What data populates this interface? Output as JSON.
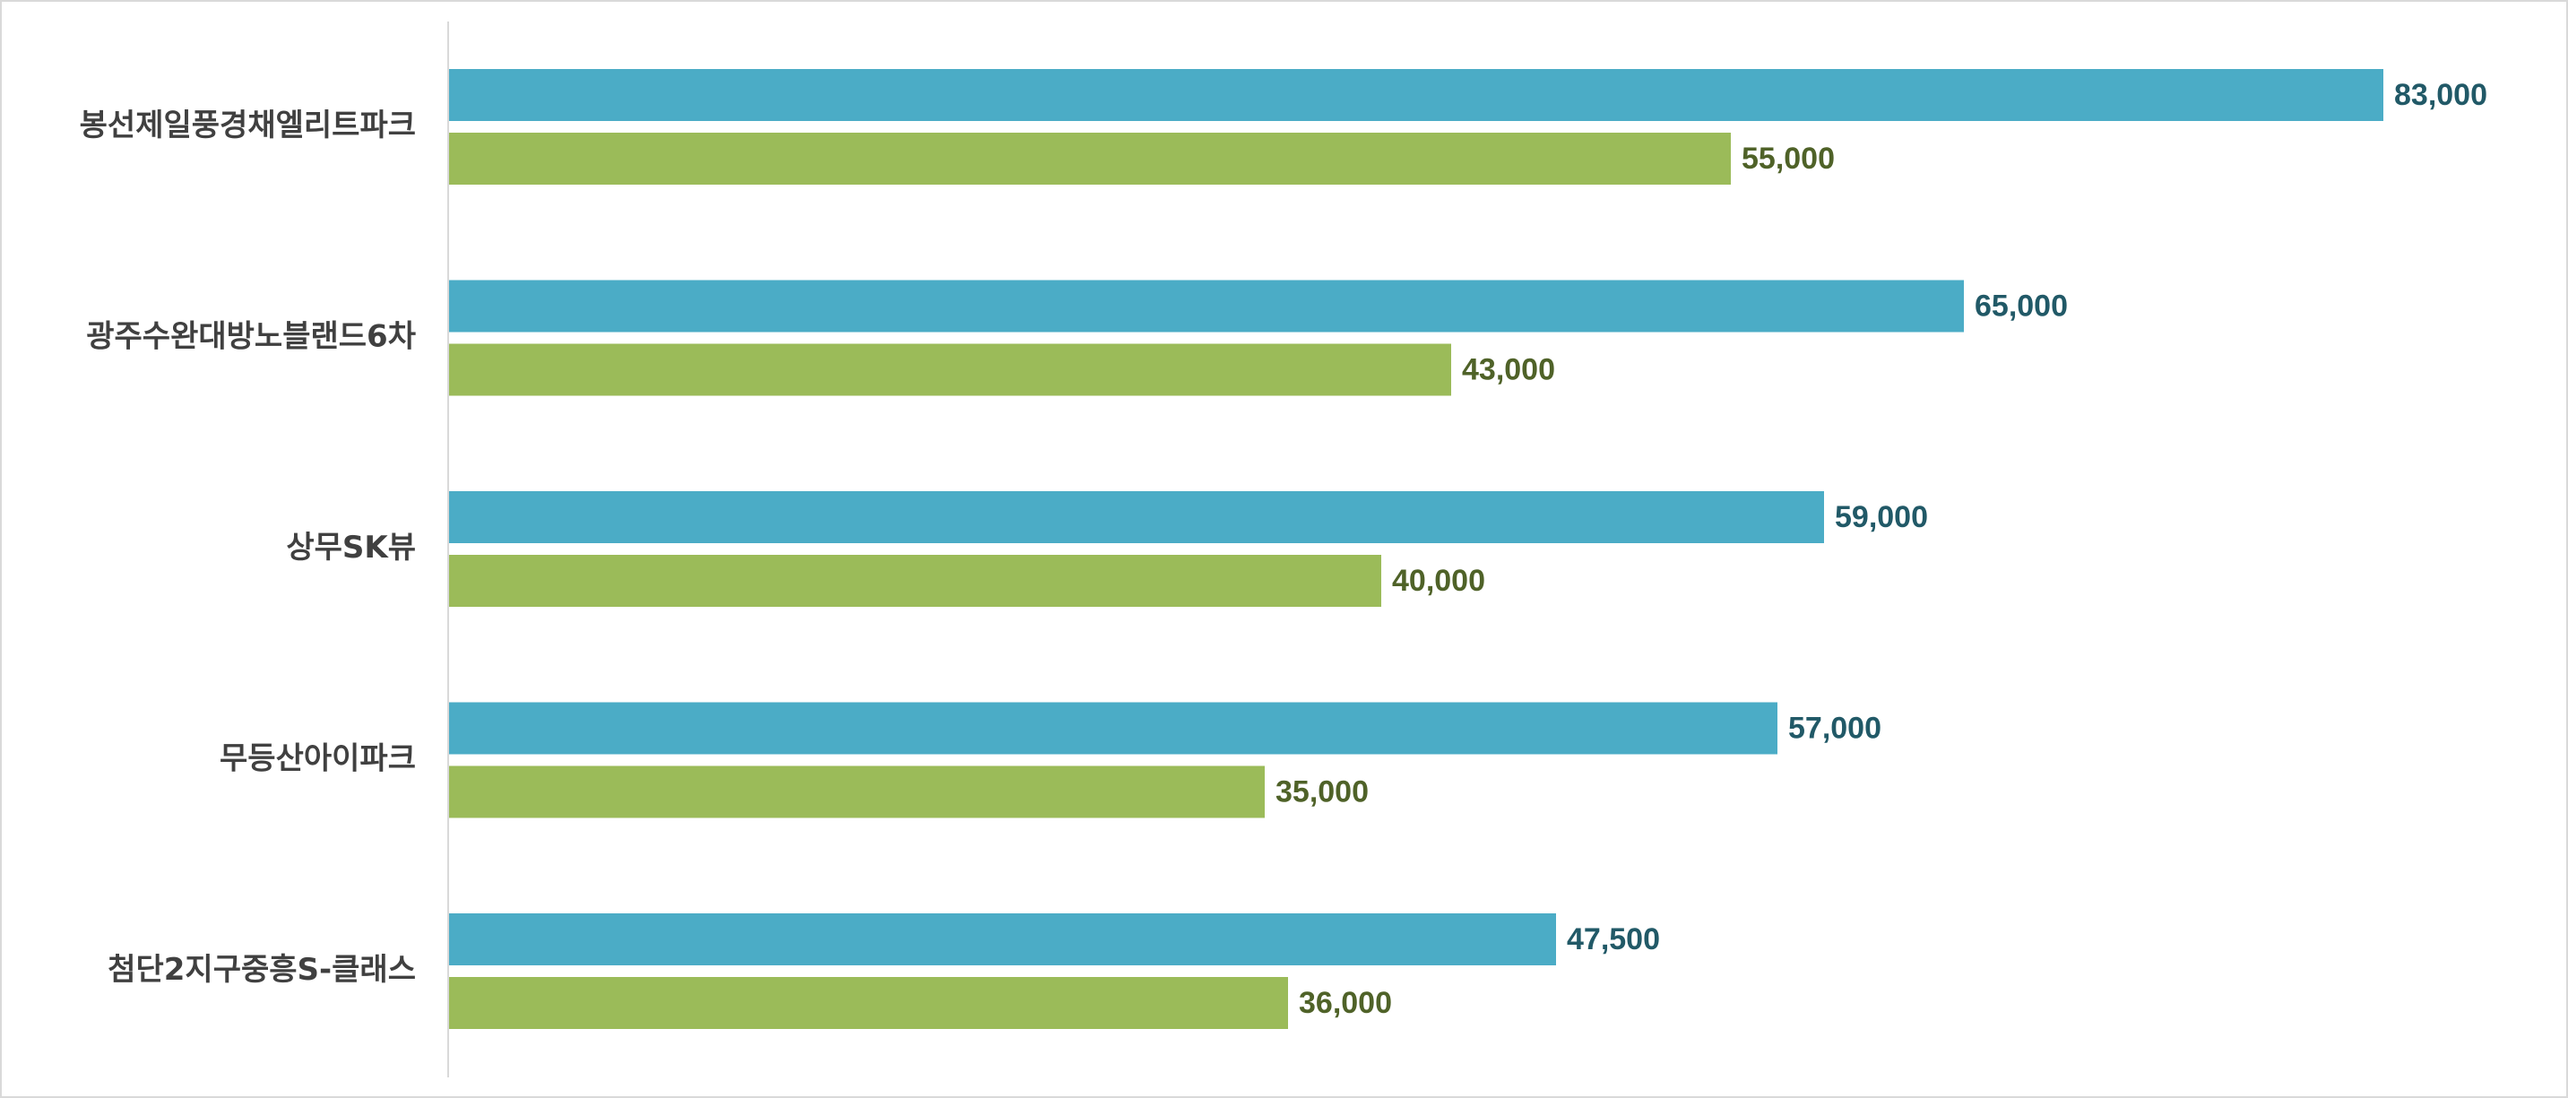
{
  "chart_data": {
    "type": "bar",
    "orientation": "horizontal",
    "title": "",
    "xlabel": "",
    "ylabel": "",
    "grid": false,
    "legend": "none",
    "xlim": [
      0,
      90000
    ],
    "categories": [
      "봉선제일풍경채엘리트파크",
      "광주수완대방노블랜드6차",
      "상무SK뷰",
      "무등산아이파크",
      "첨단2지구중흥S-클래스"
    ],
    "series": [
      {
        "name": "series-1",
        "color": "#4BACC6",
        "label_color": "#215967",
        "values": [
          83000,
          65000,
          59000,
          57000,
          47500
        ],
        "labels": [
          "83,000",
          "65,000",
          "59,000",
          "57,000",
          "47,500"
        ]
      },
      {
        "name": "series-2",
        "color": "#9BBB59",
        "label_color": "#4F6228",
        "values": [
          55000,
          43000,
          40000,
          35000,
          36000
        ],
        "labels": [
          "55,000",
          "43,000",
          "40,000",
          "35,000",
          "36,000"
        ]
      }
    ]
  }
}
